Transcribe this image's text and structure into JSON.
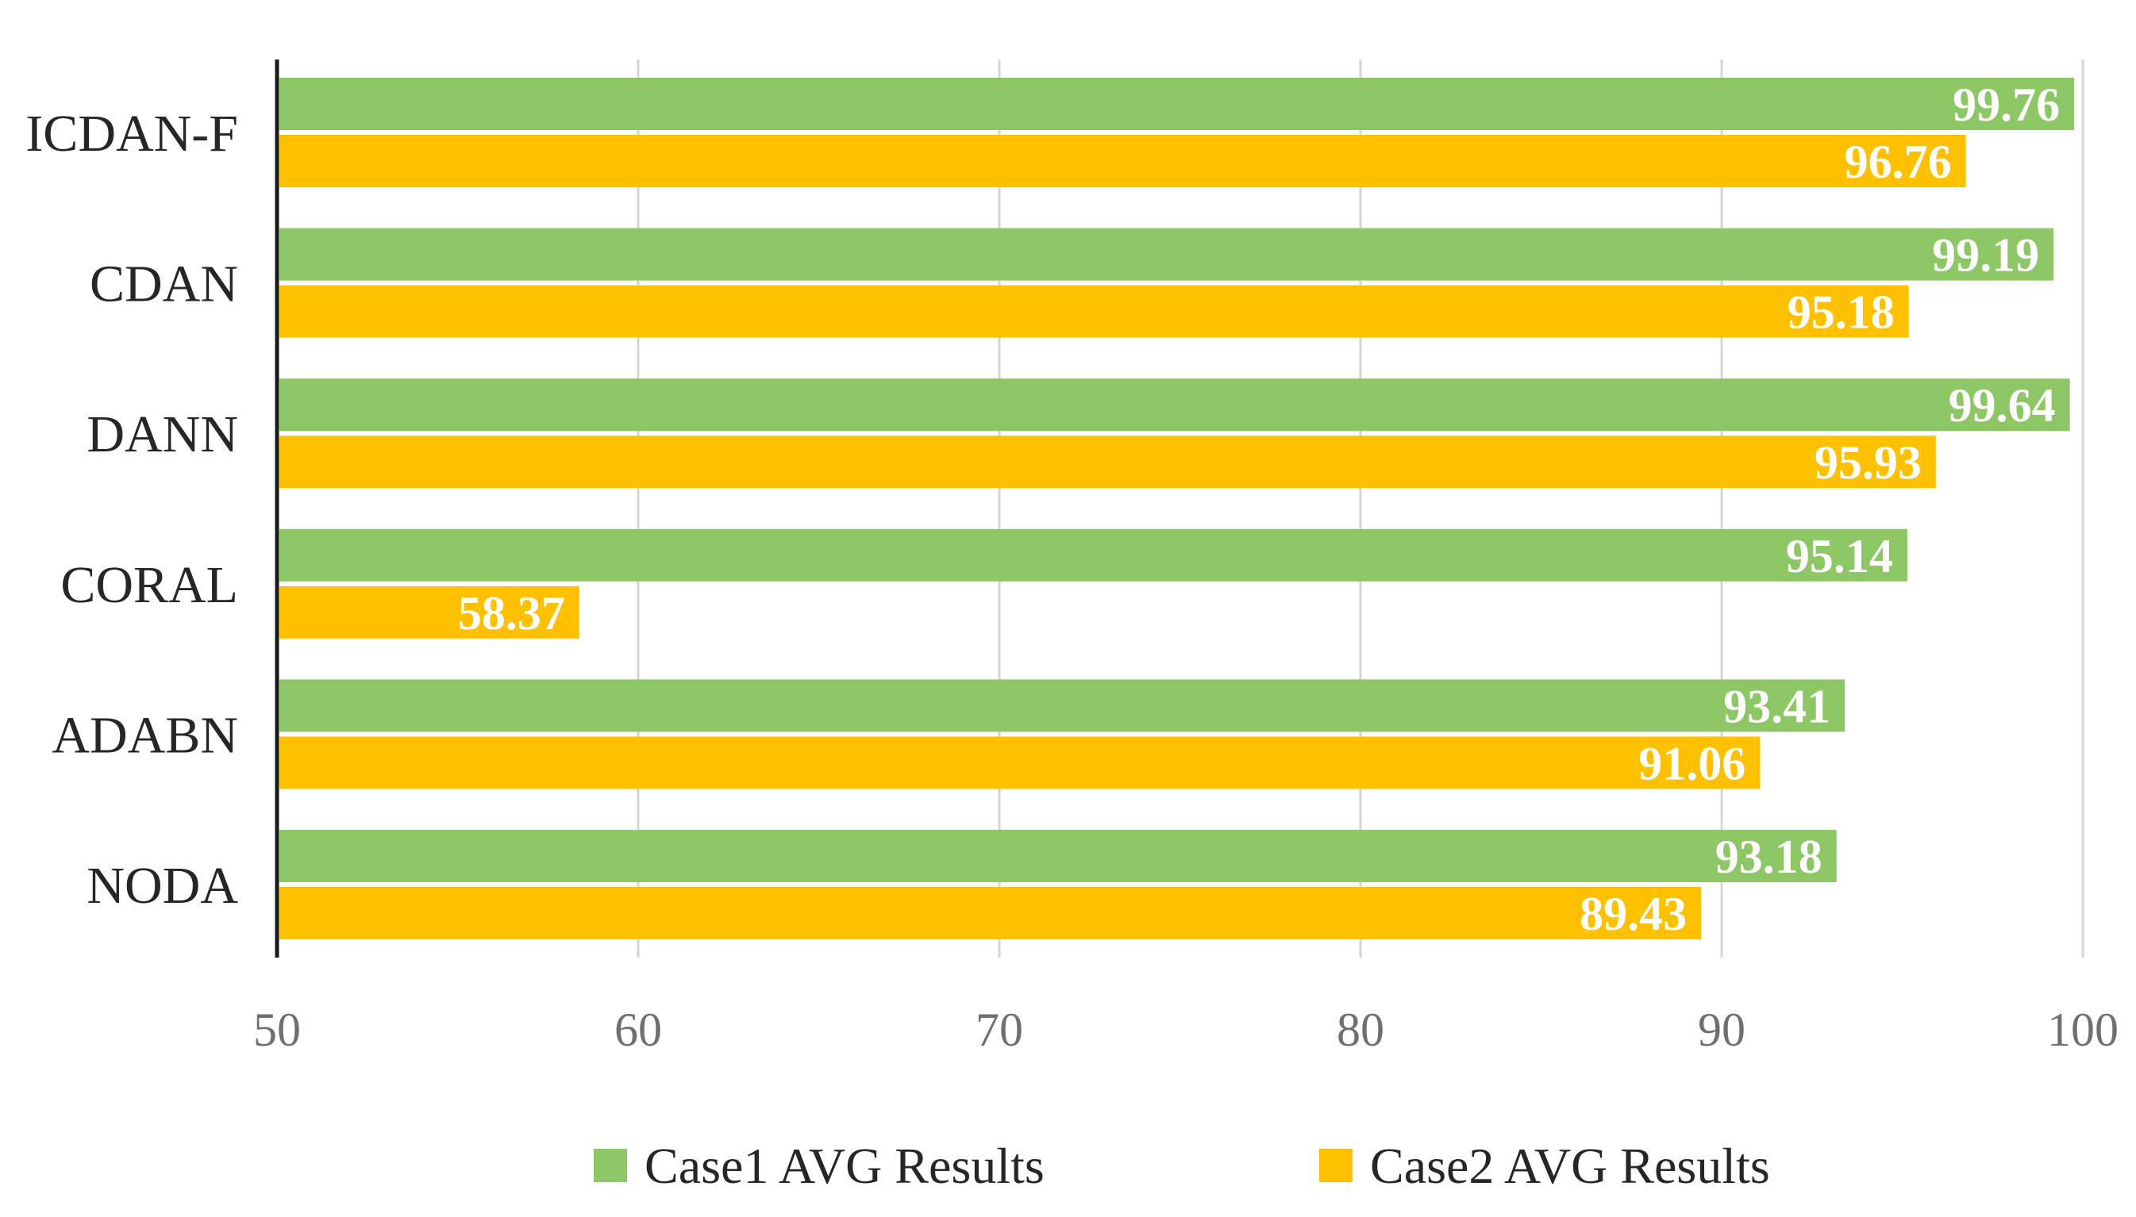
{
  "chart_data": {
    "type": "bar",
    "orientation": "horizontal",
    "title": "",
    "xlabel": "",
    "ylabel": "",
    "categories": [
      "ICDAN-F",
      "CDAN",
      "DANN",
      "CORAL",
      "ADABN",
      "NODA"
    ],
    "series": [
      {
        "name": "Case1 AVG Results",
        "color": "#8cc665",
        "values": [
          99.76,
          99.19,
          99.64,
          95.14,
          93.41,
          93.18
        ],
        "labels": [
          "99.76",
          "99.19",
          "99.64",
          "95.14",
          "93.41",
          "93.18"
        ]
      },
      {
        "name": "Case2 AVG Results",
        "color": "#ffc000",
        "values": [
          96.76,
          95.18,
          95.93,
          58.37,
          91.06,
          89.43
        ],
        "labels": [
          "96.76",
          "95.18",
          "95.93",
          "58.37",
          "91.06",
          "89.43"
        ]
      }
    ],
    "xlim": [
      50,
      100
    ],
    "xticks": [
      50,
      60,
      70,
      80,
      90,
      100
    ],
    "xtick_labels": [
      "50",
      "60",
      "70",
      "80",
      "90",
      "100"
    ],
    "grid": "vertical",
    "legend": "bottom"
  }
}
